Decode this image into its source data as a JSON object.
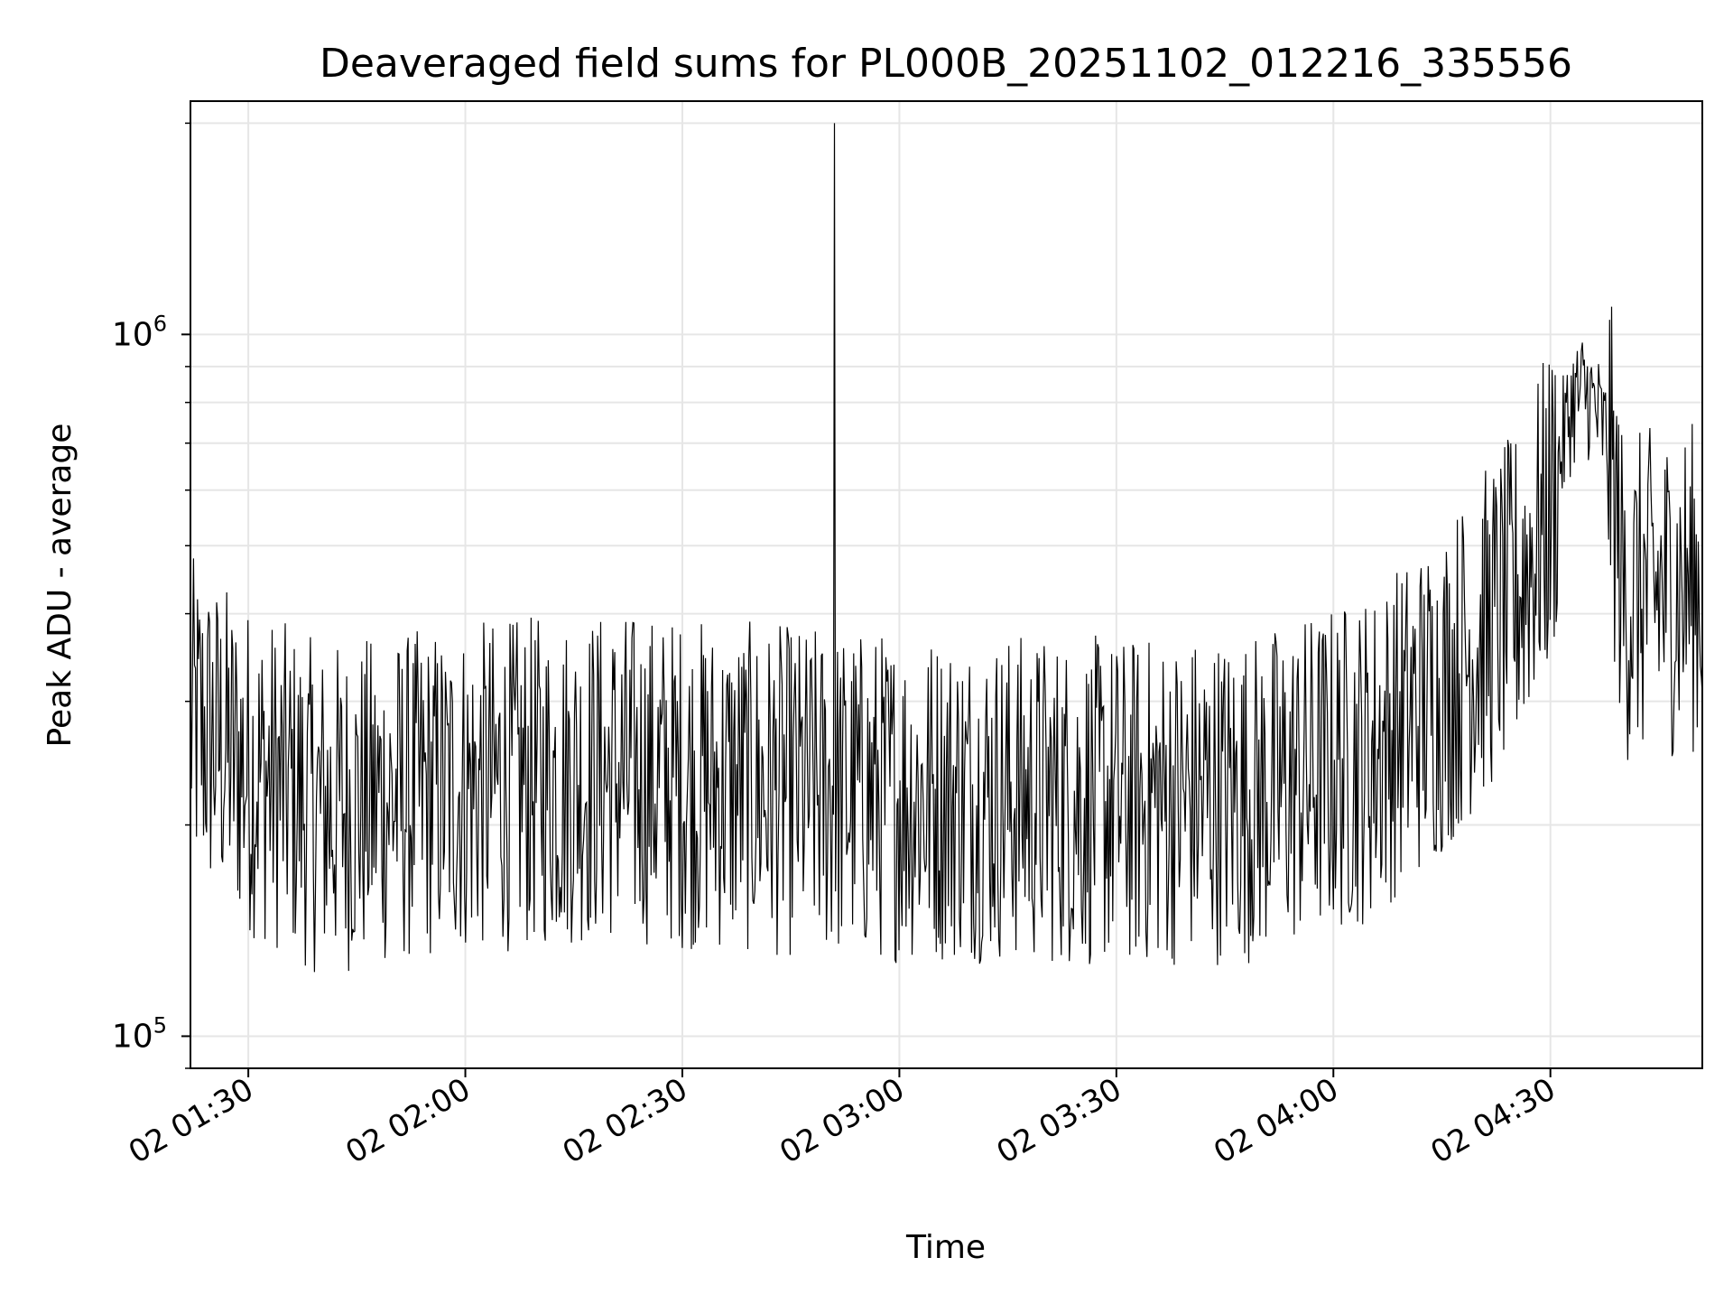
{
  "chart_data": {
    "type": "line",
    "title": "Deaveraged field sums for PL000B_20251102_012216_335556",
    "xlabel": "Time",
    "ylabel": "Peak ADU - average",
    "yscale": "log",
    "grid": true,
    "line_color": "#000000",
    "grid_color": "#e6e6e6",
    "xlim": [
      "02 01:22",
      "02 04:51"
    ],
    "ylim": [
      90000,
      2150000
    ],
    "x_ticks": [
      {
        "value": "02 01:30",
        "label": "02 01:30"
      },
      {
        "value": "02 02:00",
        "label": "02 02:00"
      },
      {
        "value": "02 02:30",
        "label": "02 02:30"
      },
      {
        "value": "02 03:00",
        "label": "02 03:00"
      },
      {
        "value": "02 03:30",
        "label": "02 03:30"
      },
      {
        "value": "02 04:00",
        "label": "02 04:00"
      },
      {
        "value": "02 04:30",
        "label": "02 04:30"
      }
    ],
    "y_ticks": [
      {
        "value": 100000,
        "base": "10",
        "exp": "5"
      },
      {
        "value": 1000000,
        "base": "10",
        "exp": "6"
      }
    ],
    "envelope": {
      "x": [
        "02 01:22",
        "02 01:30",
        "02 01:40",
        "02 02:00",
        "02 02:20",
        "02 02:40",
        "02 02:55",
        "02 03:10",
        "02 03:30",
        "02 03:50",
        "02 04:05",
        "02 04:15",
        "02 04:25",
        "02 04:30",
        "02 04:33",
        "02 04:35",
        "02 04:38",
        "02 04:40",
        "02 04:51"
      ],
      "y": [
        280000,
        240000,
        210000,
        225000,
        235000,
        225000,
        220000,
        220000,
        215000,
        220000,
        250000,
        310000,
        420000,
        560000,
        800000,
        830000,
        700000,
        420000,
        440000
      ]
    },
    "spikes": [
      {
        "x": "02 02:51",
        "y": 2000000
      }
    ]
  }
}
